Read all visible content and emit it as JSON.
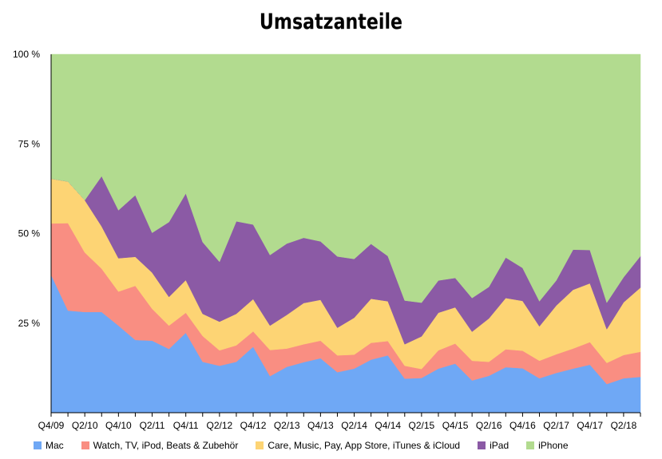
{
  "chart_data": {
    "type": "area",
    "stacked": true,
    "title": "Umsatzanteile",
    "xlabel": "",
    "ylabel": "",
    "ylim": [
      0,
      100
    ],
    "yticks": [
      25,
      50,
      75,
      100
    ],
    "ytick_labels": [
      "25 %",
      "50 %",
      "75 %",
      "100 %"
    ],
    "x": [
      "Q4/09",
      "Q1/10",
      "Q2/10",
      "Q3/10",
      "Q4/10",
      "Q1/11",
      "Q2/11",
      "Q3/11",
      "Q4/11",
      "Q1/12",
      "Q2/12",
      "Q3/12",
      "Q4/12",
      "Q1/13",
      "Q2/13",
      "Q3/13",
      "Q4/13",
      "Q1/14",
      "Q2/14",
      "Q3/14",
      "Q4/14",
      "Q1/15",
      "Q2/15",
      "Q3/15",
      "Q4/15",
      "Q1/16",
      "Q2/16",
      "Q3/16",
      "Q4/16",
      "Q1/17",
      "Q2/17",
      "Q3/17",
      "Q4/17",
      "Q1/18",
      "Q2/18",
      "Q3/18"
    ],
    "x_tick_labels": [
      "Q4/09",
      "Q2/10",
      "Q4/10",
      "Q2/11",
      "Q4/11",
      "Q2/12",
      "Q4/12",
      "Q2/13",
      "Q4/13",
      "Q2/14",
      "Q4/14",
      "Q2/15",
      "Q4/15",
      "Q2/16",
      "Q4/16",
      "Q2/17",
      "Q4/17",
      "Q2/18"
    ],
    "legend_position": "bottom",
    "grid": false,
    "series": [
      {
        "name": "Mac",
        "color": "#6fa8f5",
        "values": [
          38.5,
          28.5,
          28.1,
          28.1,
          24.3,
          20.3,
          20.1,
          17.8,
          22.3,
          14.2,
          13.1,
          14.2,
          18.4,
          10.2,
          12.8,
          14.1,
          15.2,
          11.3,
          12.3,
          14.8,
          16.0,
          9.5,
          9.7,
          12.3,
          13.7,
          9.0,
          10.3,
          12.7,
          12.4,
          9.6,
          11.1,
          12.3,
          13.4,
          8.0,
          9.6,
          10.0
        ]
      },
      {
        "name": " Watch,  TV, iPod, Beats & Zubehör",
        "color": "#f98e82",
        "values": [
          14.3,
          24.4,
          16.6,
          12.1,
          9.5,
          15.1,
          8.9,
          6.5,
          5.6,
          7.2,
          4.3,
          4.6,
          4.3,
          7.3,
          5.1,
          5.0,
          4.9,
          4.7,
          3.9,
          4.7,
          4.0,
          3.6,
          2.5,
          5.1,
          5.6,
          5.5,
          3.9,
          5.0,
          4.9,
          4.9,
          5.2,
          5.6,
          6.3,
          5.9,
          6.5,
          7.0
        ]
      },
      {
        "name": "Care,  Music,  Pay, App Store, iTunes & iCloud",
        "color": "#fdd474",
        "values": [
          12.5,
          11.6,
          14.6,
          11.8,
          9.3,
          8.1,
          10.1,
          8.0,
          9.1,
          6.2,
          8.0,
          8.8,
          9.0,
          6.8,
          9.4,
          11.5,
          11.4,
          7.7,
          10.3,
          12.3,
          11.1,
          6.0,
          9.1,
          10.5,
          10.1,
          8.1,
          12.1,
          14.3,
          13.9,
          9.6,
          13.6,
          16.4,
          16.4,
          9.4,
          14.7,
          17.9
        ]
      },
      {
        "name": "iPad",
        "color": "#8b5aa5",
        "values": [
          0,
          0,
          0,
          14.0,
          13.4,
          17.2,
          11.1,
          20.9,
          24.2,
          20.0,
          16.7,
          25.8,
          20.8,
          19.7,
          19.9,
          18.2,
          16.3,
          19.9,
          16.4,
          15.3,
          12.6,
          12.2,
          9.4,
          9.0,
          8.2,
          9.4,
          8.8,
          11.3,
          9.2,
          7.0,
          7.0,
          11.2,
          9.3,
          7.4,
          7.0,
          8.8
        ]
      },
      {
        "name": "iPhone",
        "color": "#b2db8f",
        "values": [
          34.7,
          35.5,
          40.7,
          34.0,
          43.5,
          39.3,
          49.8,
          46.8,
          38.8,
          52.4,
          57.9,
          46.6,
          47.5,
          56.0,
          52.8,
          51.2,
          52.2,
          56.4,
          57.1,
          52.9,
          56.3,
          68.7,
          69.3,
          63.1,
          62.4,
          68.0,
          64.9,
          56.7,
          59.6,
          68.9,
          63.1,
          54.5,
          54.6,
          69.3,
          62.2,
          56.3
        ]
      }
    ]
  }
}
